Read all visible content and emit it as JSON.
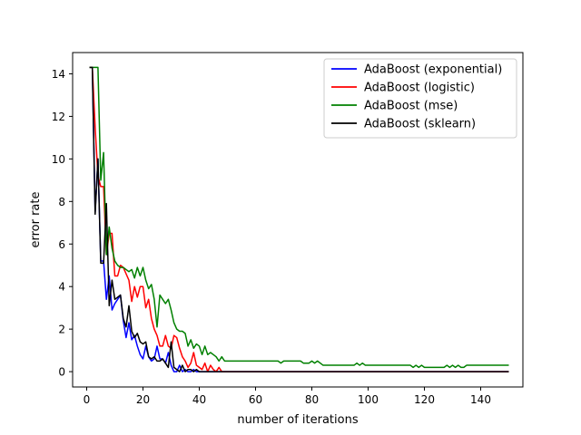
{
  "chart_data": {
    "type": "line",
    "xlabel": "number of iterations",
    "ylabel": "error rate",
    "xlim": [
      -5,
      155
    ],
    "ylim": [
      -0.72,
      15.0
    ],
    "xticks": [
      0,
      20,
      40,
      60,
      80,
      100,
      120,
      140
    ],
    "yticks": [
      0,
      2,
      4,
      6,
      8,
      10,
      12,
      14
    ],
    "grid": false,
    "legend_position": "top-right",
    "series": [
      {
        "name": "AdaBoost (exponential)",
        "color": "#0000ff",
        "points": [
          [
            1,
            14.3
          ],
          [
            2,
            14.3
          ],
          [
            3,
            7.5
          ],
          [
            4,
            10.0
          ],
          [
            5,
            5.2
          ],
          [
            6,
            5.2
          ],
          [
            7,
            3.4
          ],
          [
            8,
            4.5
          ],
          [
            9,
            2.9
          ],
          [
            10,
            3.2
          ],
          [
            11,
            3.4
          ],
          [
            12,
            3.6
          ],
          [
            13,
            2.4
          ],
          [
            14,
            1.6
          ],
          [
            15,
            2.3
          ],
          [
            16,
            1.5
          ],
          [
            17,
            1.7
          ],
          [
            18,
            1.2
          ],
          [
            19,
            0.8
          ],
          [
            20,
            0.6
          ],
          [
            21,
            1.2
          ],
          [
            22,
            0.7
          ],
          [
            23,
            0.5
          ],
          [
            24,
            0.6
          ],
          [
            25,
            1.2
          ],
          [
            26,
            0.6
          ],
          [
            27,
            0.6
          ],
          [
            28,
            0.4
          ],
          [
            29,
            0.9
          ],
          [
            30,
            0.3
          ],
          [
            31,
            0.0
          ],
          [
            32,
            0.0
          ],
          [
            33,
            0.3
          ],
          [
            34,
            0.0
          ],
          [
            35,
            0.1
          ],
          [
            36,
            0.0
          ],
          [
            37,
            0.0
          ],
          [
            38,
            0.1
          ],
          [
            39,
            0.0
          ],
          [
            40,
            0.0
          ],
          [
            150,
            0.0
          ]
        ]
      },
      {
        "name": "AdaBoost (logistic)",
        "color": "#ff0000",
        "points": [
          [
            1,
            14.3
          ],
          [
            2,
            14.3
          ],
          [
            3,
            11.5
          ],
          [
            4,
            9.2
          ],
          [
            5,
            8.7
          ],
          [
            6,
            8.7
          ],
          [
            7,
            5.5
          ],
          [
            8,
            6.5
          ],
          [
            9,
            6.5
          ],
          [
            10,
            4.5
          ],
          [
            11,
            4.5
          ],
          [
            12,
            5.0
          ],
          [
            13,
            4.9
          ],
          [
            14,
            4.6
          ],
          [
            15,
            4.3
          ],
          [
            16,
            3.3
          ],
          [
            17,
            4.0
          ],
          [
            18,
            3.5
          ],
          [
            19,
            4.0
          ],
          [
            20,
            4.0
          ],
          [
            21,
            3.0
          ],
          [
            22,
            3.4
          ],
          [
            23,
            2.5
          ],
          [
            24,
            2.0
          ],
          [
            25,
            1.7
          ],
          [
            26,
            1.2
          ],
          [
            27,
            1.2
          ],
          [
            28,
            1.7
          ],
          [
            29,
            1.2
          ],
          [
            30,
            1.1
          ],
          [
            31,
            1.7
          ],
          [
            32,
            1.6
          ],
          [
            33,
            1.1
          ],
          [
            34,
            0.7
          ],
          [
            35,
            0.5
          ],
          [
            36,
            0.2
          ],
          [
            37,
            0.4
          ],
          [
            38,
            0.9
          ],
          [
            39,
            0.3
          ],
          [
            40,
            0.2
          ],
          [
            41,
            0.1
          ],
          [
            42,
            0.4
          ],
          [
            43,
            0.0
          ],
          [
            44,
            0.3
          ],
          [
            45,
            0.1
          ],
          [
            46,
            0.0
          ],
          [
            47,
            0.2
          ],
          [
            48,
            0.0
          ],
          [
            150,
            0.0
          ]
        ]
      },
      {
        "name": "AdaBoost (mse)",
        "color": "#008000",
        "points": [
          [
            1,
            14.3
          ],
          [
            2,
            14.3
          ],
          [
            3,
            14.3
          ],
          [
            4,
            14.3
          ],
          [
            5,
            9.0
          ],
          [
            6,
            10.3
          ],
          [
            7,
            5.5
          ],
          [
            8,
            6.8
          ],
          [
            9,
            5.8
          ],
          [
            10,
            5.2
          ],
          [
            11,
            5.0
          ],
          [
            12,
            4.9
          ],
          [
            13,
            4.9
          ],
          [
            14,
            4.8
          ],
          [
            15,
            4.7
          ],
          [
            16,
            4.8
          ],
          [
            17,
            4.4
          ],
          [
            18,
            4.9
          ],
          [
            19,
            4.5
          ],
          [
            20,
            4.9
          ],
          [
            21,
            4.3
          ],
          [
            22,
            3.9
          ],
          [
            23,
            4.1
          ],
          [
            24,
            3.4
          ],
          [
            25,
            2.1
          ],
          [
            26,
            3.6
          ],
          [
            27,
            3.4
          ],
          [
            28,
            3.2
          ],
          [
            29,
            3.4
          ],
          [
            30,
            2.9
          ],
          [
            31,
            2.3
          ],
          [
            32,
            2.0
          ],
          [
            33,
            1.9
          ],
          [
            34,
            1.9
          ],
          [
            35,
            1.8
          ],
          [
            36,
            1.2
          ],
          [
            37,
            1.5
          ],
          [
            38,
            1.1
          ],
          [
            39,
            1.3
          ],
          [
            40,
            1.2
          ],
          [
            41,
            0.8
          ],
          [
            42,
            1.2
          ],
          [
            43,
            0.8
          ],
          [
            44,
            0.9
          ],
          [
            45,
            0.8
          ],
          [
            46,
            0.7
          ],
          [
            47,
            0.5
          ],
          [
            48,
            0.7
          ],
          [
            49,
            0.5
          ],
          [
            68,
            0.5
          ],
          [
            69,
            0.4
          ],
          [
            70,
            0.5
          ],
          [
            76,
            0.5
          ],
          [
            77,
            0.4
          ],
          [
            79,
            0.4
          ],
          [
            80,
            0.5
          ],
          [
            81,
            0.4
          ],
          [
            82,
            0.5
          ],
          [
            83,
            0.4
          ],
          [
            84,
            0.3
          ],
          [
            95,
            0.3
          ],
          [
            96,
            0.4
          ],
          [
            97,
            0.3
          ],
          [
            98,
            0.4
          ],
          [
            99,
            0.3
          ],
          [
            115,
            0.3
          ],
          [
            116,
            0.2
          ],
          [
            117,
            0.3
          ],
          [
            118,
            0.2
          ],
          [
            119,
            0.3
          ],
          [
            120,
            0.2
          ],
          [
            127,
            0.2
          ],
          [
            128,
            0.3
          ],
          [
            129,
            0.2
          ],
          [
            130,
            0.3
          ],
          [
            131,
            0.2
          ],
          [
            132,
            0.3
          ],
          [
            133,
            0.2
          ],
          [
            134,
            0.2
          ],
          [
            135,
            0.3
          ],
          [
            150,
            0.3
          ]
        ]
      },
      {
        "name": "AdaBoost (sklearn)",
        "color": "#000000",
        "points": [
          [
            1,
            14.3
          ],
          [
            2,
            14.3
          ],
          [
            3,
            7.4
          ],
          [
            4,
            10.0
          ],
          [
            5,
            5.1
          ],
          [
            6,
            5.1
          ],
          [
            7,
            7.9
          ],
          [
            8,
            3.1
          ],
          [
            9,
            4.3
          ],
          [
            10,
            3.4
          ],
          [
            11,
            3.5
          ],
          [
            12,
            3.6
          ],
          [
            13,
            2.5
          ],
          [
            14,
            2.1
          ],
          [
            15,
            3.1
          ],
          [
            16,
            1.9
          ],
          [
            17,
            1.6
          ],
          [
            18,
            1.8
          ],
          [
            19,
            1.4
          ],
          [
            20,
            1.3
          ],
          [
            21,
            1.4
          ],
          [
            22,
            0.7
          ],
          [
            23,
            0.6
          ],
          [
            24,
            0.7
          ],
          [
            25,
            0.5
          ],
          [
            26,
            0.5
          ],
          [
            27,
            0.6
          ],
          [
            28,
            0.4
          ],
          [
            29,
            0.2
          ],
          [
            30,
            1.4
          ],
          [
            31,
            0.2
          ],
          [
            32,
            0.1
          ],
          [
            33,
            0.0
          ],
          [
            34,
            0.3
          ],
          [
            35,
            0.0
          ],
          [
            36,
            0.1
          ],
          [
            37,
            0.1
          ],
          [
            38,
            0.0
          ],
          [
            39,
            0.1
          ],
          [
            40,
            0.0
          ],
          [
            150,
            0.0
          ]
        ]
      }
    ]
  }
}
